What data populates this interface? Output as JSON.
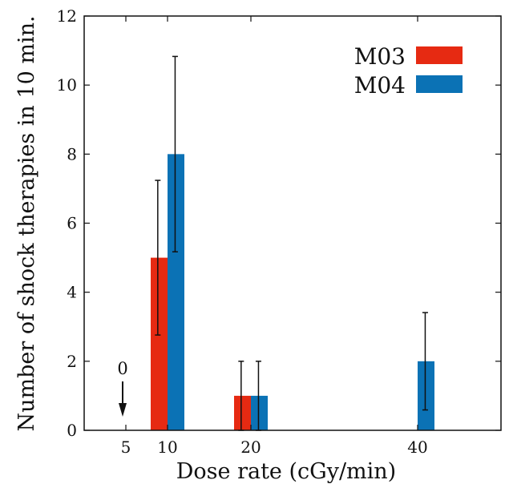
{
  "chart_data": {
    "type": "bar",
    "title": "",
    "xlabel": "Dose rate (cGy/min)",
    "ylabel": "Number of shock therapies in 10 min.",
    "x_ticks": [
      "5",
      "10",
      "20",
      "40"
    ],
    "xlim": [
      0,
      50
    ],
    "ylim": [
      0,
      12
    ],
    "y_ticks": [
      "0",
      "2",
      "4",
      "6",
      "8",
      "10",
      "12"
    ],
    "grid": false,
    "legend_position": "top-right",
    "series": [
      {
        "name": "M03",
        "color": "#e62a12",
        "points": [
          {
            "x": 10,
            "y": 5,
            "err": 2.24
          },
          {
            "x": 20,
            "y": 1,
            "err": 1.0
          }
        ]
      },
      {
        "name": "M04",
        "color": "#0b72b5",
        "points": [
          {
            "x": 10,
            "y": 8,
            "err": 2.83
          },
          {
            "x": 20,
            "y": 1,
            "err": 1.0
          },
          {
            "x": 40,
            "y": 2,
            "err": 1.41
          }
        ]
      }
    ],
    "annotations": [
      {
        "text": "0",
        "x": 5,
        "arrow": "down"
      }
    ]
  }
}
